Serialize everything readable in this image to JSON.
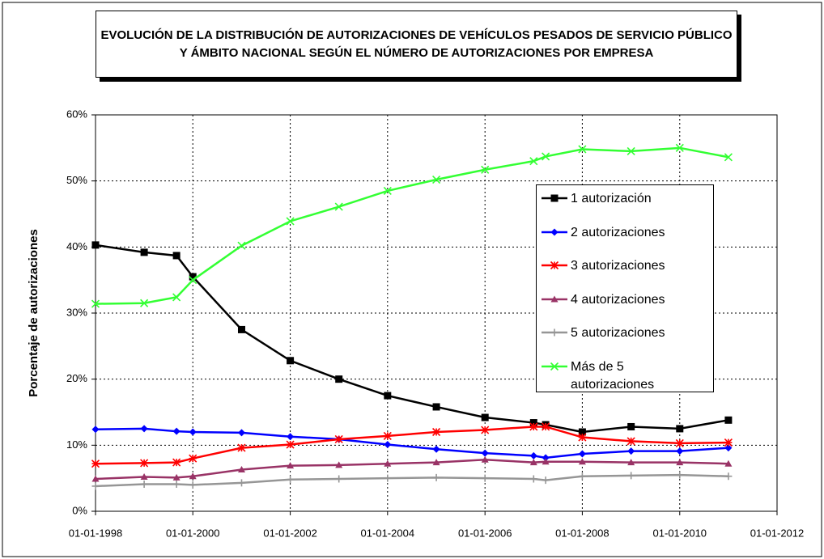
{
  "chart_data": {
    "type": "line",
    "title": "EVOLUCIÓN DE LA DISTRIBUCIÓN DE AUTORIZACIONES DE VEHÍCULOS PESADOS DE SERVICIO PÚBLICO Y ÁMBITO NACIONAL SEGÚN EL NÚMERO DE AUTORIZACIONES POR EMPRESA",
    "y_label": "Porcentaje de autorizaciones",
    "x": [
      "01-01-1998",
      "01-01-1999",
      "01-09-1999",
      "01-01-2000",
      "01-01-2001",
      "01-01-2002",
      "01-01-2003",
      "01-01-2004",
      "01-01-2005",
      "01-01-2006",
      "01-01-2007",
      "01-04-2007",
      "01-01-2008",
      "01-01-2009",
      "01-01-2010",
      "01-01-2011"
    ],
    "series": [
      {
        "name": "1 autorización",
        "color": "#000000",
        "marker": "square",
        "values": [
          40.3,
          39.2,
          38.7,
          35.5,
          27.5,
          22.8,
          20.0,
          17.5,
          15.8,
          14.2,
          13.4,
          13.1,
          12.0,
          12.8,
          12.5,
          13.8
        ]
      },
      {
        "name": "2 autorizaciones",
        "color": "#0000ff",
        "marker": "diamond",
        "values": [
          12.4,
          12.5,
          12.1,
          12.0,
          11.9,
          11.3,
          10.9,
          10.1,
          9.4,
          8.8,
          8.4,
          8.1,
          8.7,
          9.1,
          9.1,
          9.6
        ]
      },
      {
        "name": "3 autorizaciones",
        "color": "#ff0000",
        "marker": "asterisk",
        "values": [
          7.2,
          7.3,
          7.4,
          8.0,
          9.6,
          10.1,
          10.9,
          11.4,
          12.0,
          12.3,
          12.8,
          12.8,
          11.2,
          10.6,
          10.3,
          10.4
        ]
      },
      {
        "name": "4 autorizaciones",
        "color": "#993366",
        "marker": "triangle",
        "values": [
          4.9,
          5.2,
          5.1,
          5.3,
          6.3,
          6.9,
          7.0,
          7.2,
          7.4,
          7.8,
          7.4,
          7.5,
          7.5,
          7.4,
          7.4,
          7.2
        ]
      },
      {
        "name": "5 autorizaciones",
        "color": "#969696",
        "marker": "plus",
        "values": [
          3.8,
          4.1,
          4.1,
          4.0,
          4.3,
          4.8,
          4.9,
          5.0,
          5.1,
          5.0,
          4.9,
          4.7,
          5.3,
          5.4,
          5.5,
          5.3
        ]
      },
      {
        "name": "Más de 5 autorizaciones",
        "color": "#33ff33",
        "marker": "cross",
        "values": [
          31.4,
          31.5,
          32.4,
          35.0,
          40.2,
          43.9,
          46.1,
          48.5,
          50.2,
          51.7,
          53.0,
          53.7,
          54.8,
          54.5,
          55.0,
          53.6
        ]
      }
    ],
    "xlim": [
      "01-01-1998",
      "01-01-2012"
    ],
    "xticks": [
      "01-01-1998",
      "01-01-2000",
      "01-01-2002",
      "01-01-2004",
      "01-01-2006",
      "01-01-2008",
      "01-01-2010",
      "01-01-2012"
    ],
    "ylim": [
      0,
      60
    ],
    "yticks": [
      {
        "value": 0,
        "label": "0%"
      },
      {
        "value": 10,
        "label": "10%"
      },
      {
        "value": 20,
        "label": "20%"
      },
      {
        "value": 30,
        "label": "30%"
      },
      {
        "value": 40,
        "label": "40%"
      },
      {
        "value": 50,
        "label": "50%"
      },
      {
        "value": 60,
        "label": "60%"
      }
    ],
    "grid": true,
    "legend": "right"
  }
}
